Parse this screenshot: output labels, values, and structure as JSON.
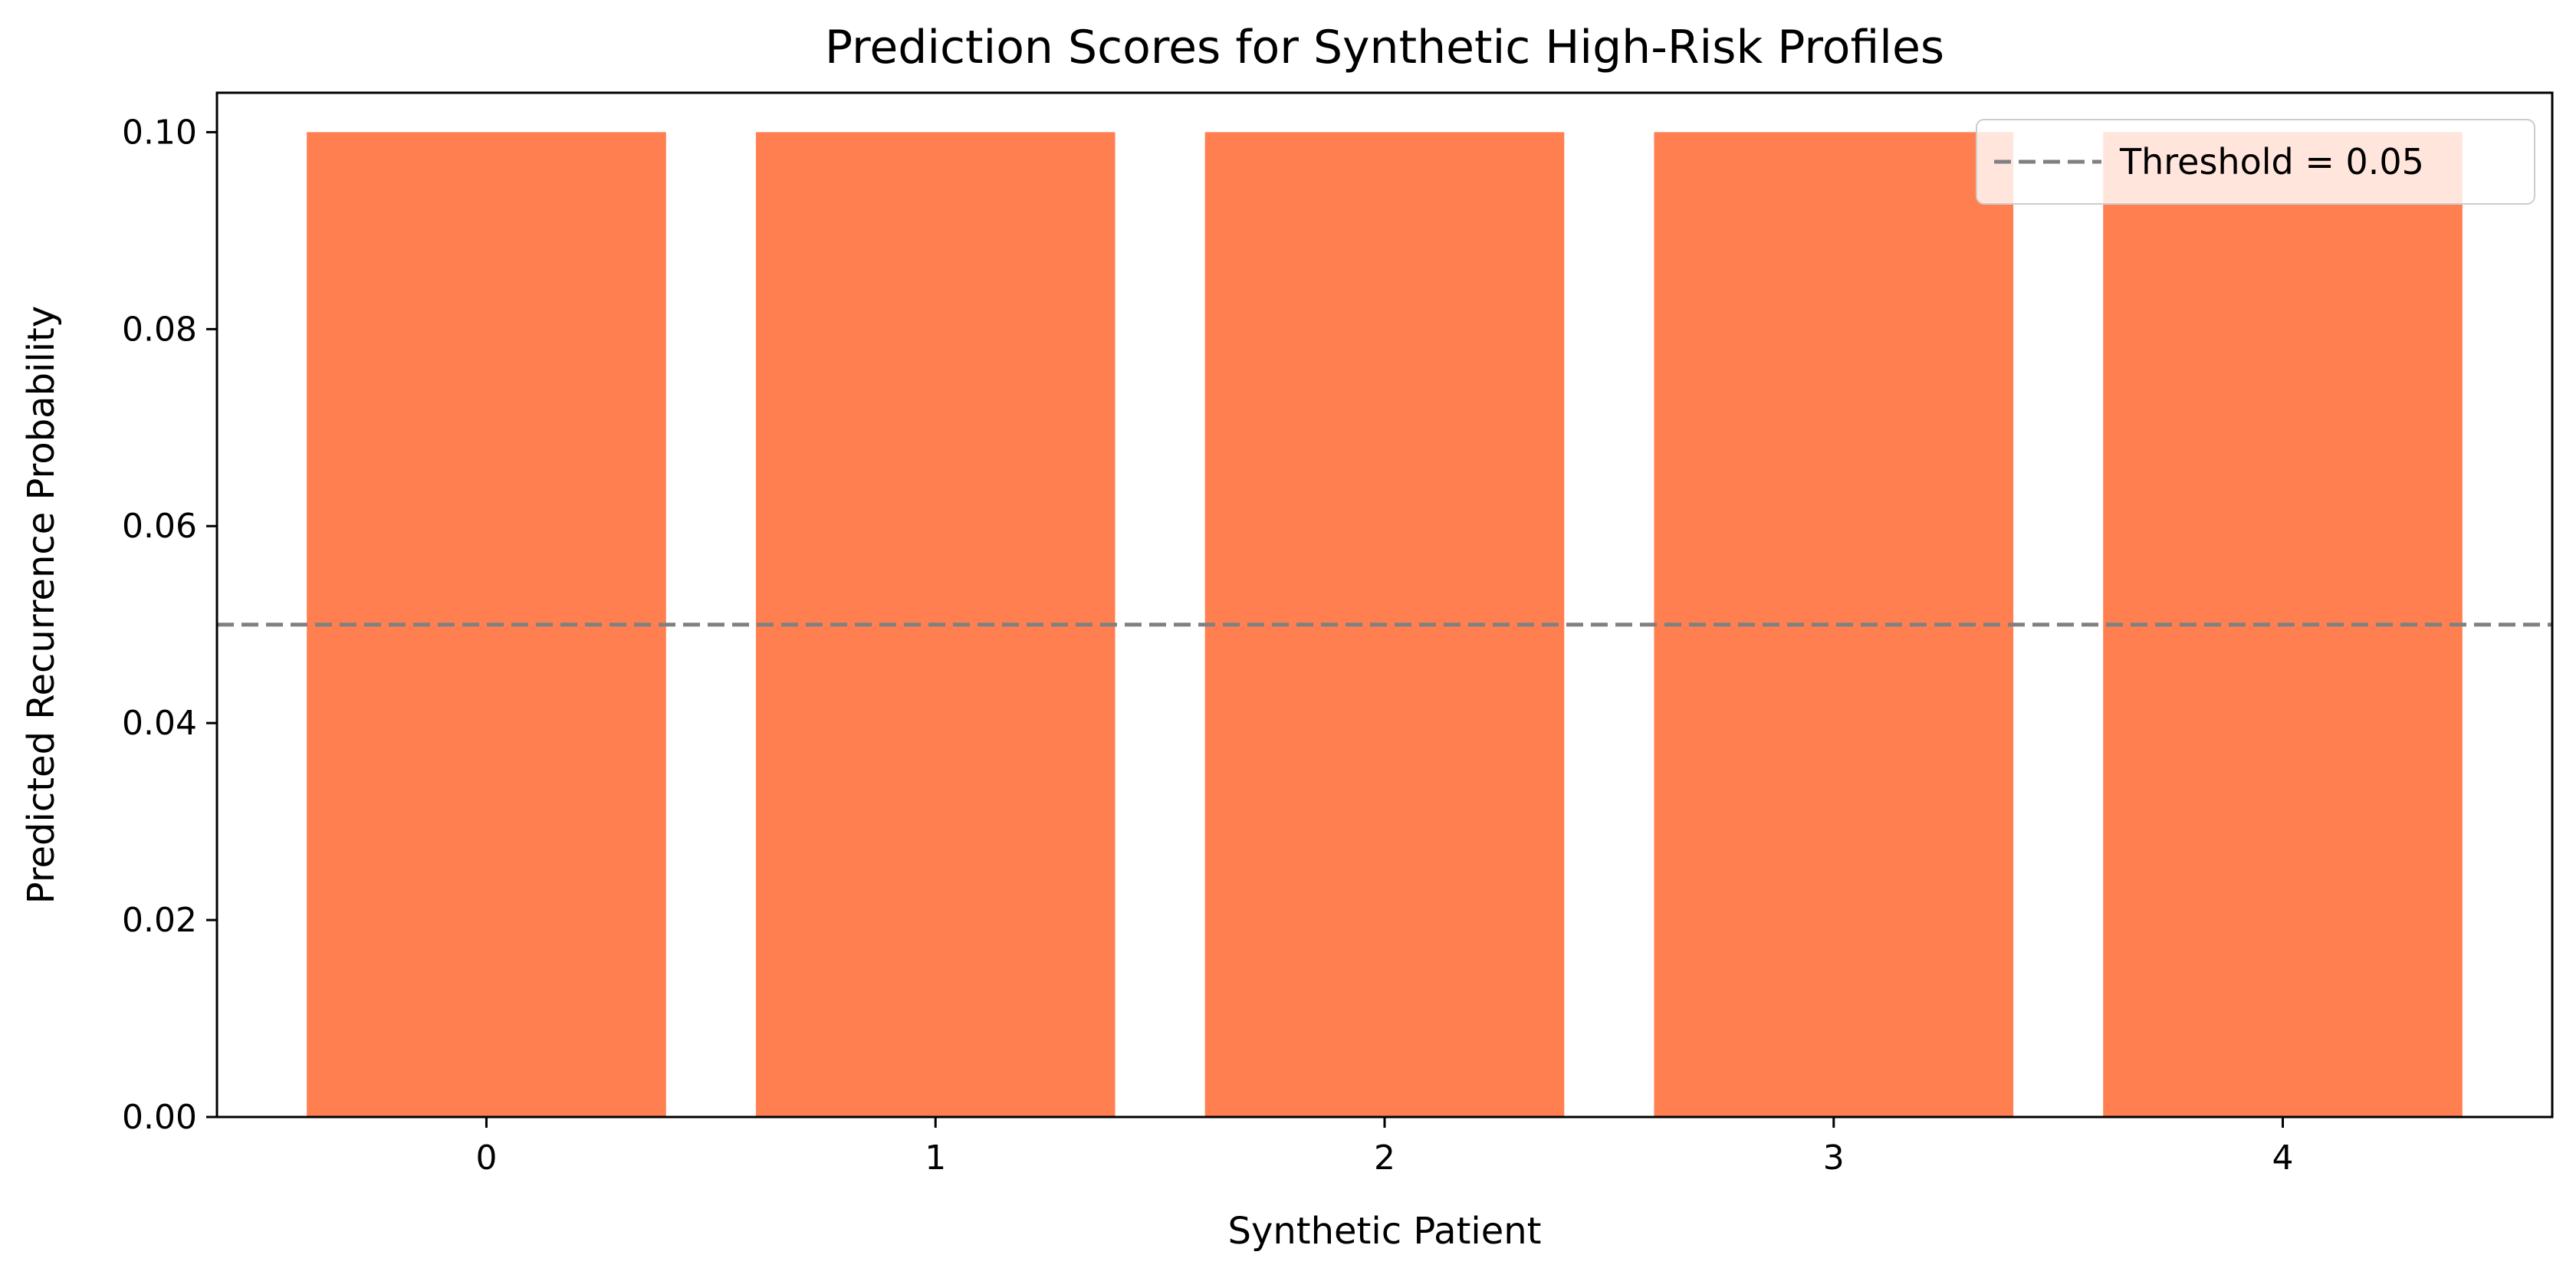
{
  "colors": {
    "bar": "#ff7f50",
    "threshold_line": "#808080",
    "axes": "#000000",
    "background": "#ffffff"
  },
  "chart_data": {
    "type": "bar",
    "title": "Prediction Scores for Synthetic High-Risk Profiles",
    "xlabel": "Synthetic Patient",
    "ylabel": "Predicted Recurrence Probability",
    "categories": [
      "0",
      "1",
      "2",
      "3",
      "4"
    ],
    "values": [
      0.1,
      0.1,
      0.1,
      0.1,
      0.1
    ],
    "ylim": [
      0,
      0.104
    ],
    "yticks": [
      0.0,
      0.02,
      0.04,
      0.06,
      0.08,
      0.1
    ],
    "ytick_labels": [
      "0.00",
      "0.02",
      "0.04",
      "0.06",
      "0.08",
      "0.10"
    ],
    "threshold": {
      "value": 0.05,
      "label": "Threshold = 0.05",
      "style": "dashed"
    },
    "legend": {
      "placement": "top-right",
      "entries": [
        "Threshold = 0.05"
      ]
    },
    "grid": false
  }
}
